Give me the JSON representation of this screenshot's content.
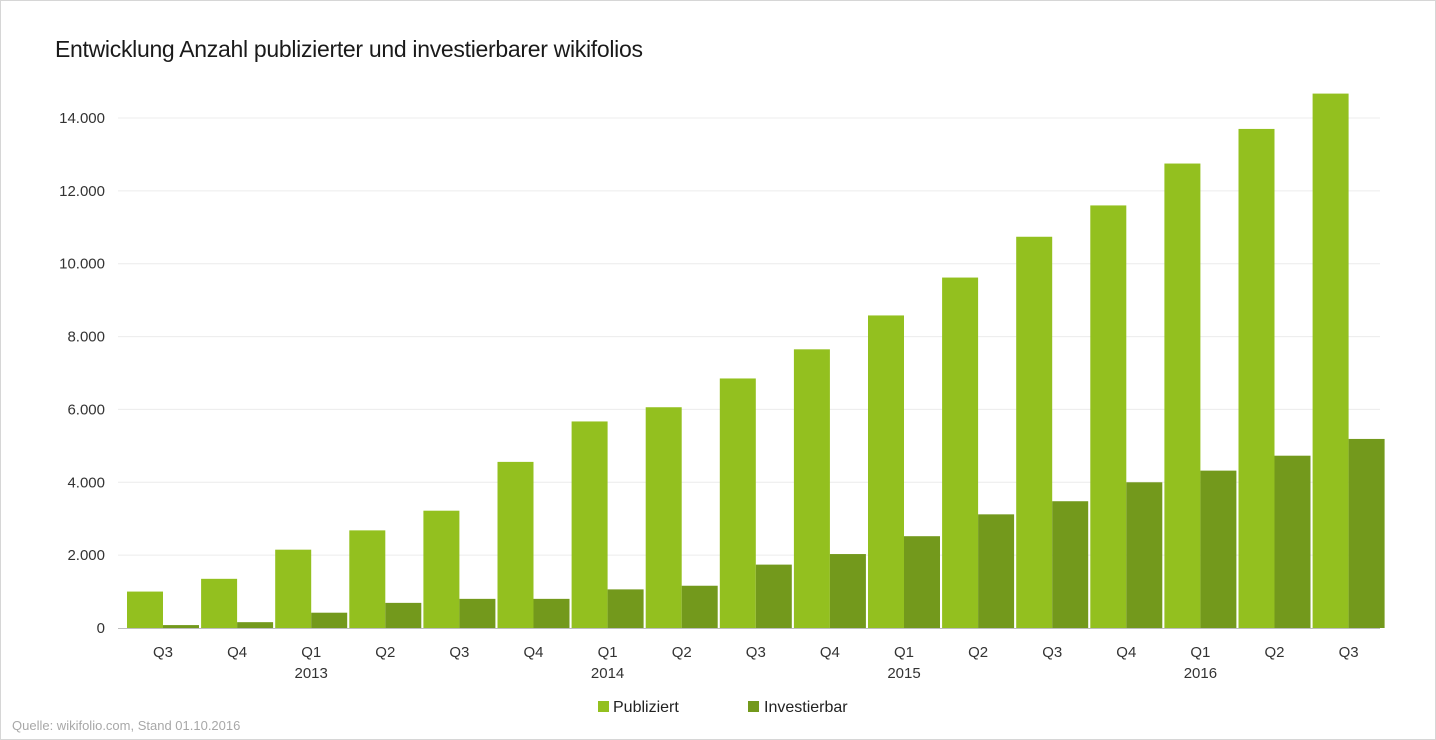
{
  "chart_data": {
    "type": "bar",
    "title": "Entwicklung Anzahl publizierter und investierbarer wikifolios",
    "xlabel": "",
    "ylabel": "",
    "ylim": [
      0,
      14000
    ],
    "yticks": [
      0,
      2000,
      4000,
      6000,
      8000,
      10000,
      12000,
      14000
    ],
    "ytick_labels": [
      "0",
      "2.000",
      "4.000",
      "6.000",
      "8.000",
      "10.000",
      "12.000",
      "14.000"
    ],
    "categories": [
      "Q3",
      "Q4",
      "Q1",
      "Q2",
      "Q3",
      "Q4",
      "Q1",
      "Q2",
      "Q3",
      "Q4",
      "Q1",
      "Q2",
      "Q3",
      "Q4",
      "Q1",
      "Q2",
      "Q3"
    ],
    "year_labels": [
      {
        "category_index": 2,
        "label": "2013"
      },
      {
        "category_index": 6,
        "label": "2014"
      },
      {
        "category_index": 10,
        "label": "2015"
      },
      {
        "category_index": 14,
        "label": "2016"
      }
    ],
    "series": [
      {
        "name": "Publiziert",
        "color": "#93c01f",
        "values": [
          1000,
          1350,
          2150,
          2680,
          3220,
          4560,
          5670,
          6060,
          6850,
          7650,
          8580,
          9620,
          10740,
          11600,
          12750,
          13700,
          14670
        ]
      },
      {
        "name": "Investierbar",
        "color": "#73991c",
        "values": [
          80,
          160,
          420,
          690,
          800,
          800,
          1060,
          1160,
          1740,
          2030,
          2520,
          3120,
          3480,
          4000,
          4320,
          4730,
          5190
        ]
      }
    ],
    "grid": true,
    "legend_position": "bottom-center"
  },
  "source_note": "Quelle: wikifolio.com, Stand 01.10.2016"
}
